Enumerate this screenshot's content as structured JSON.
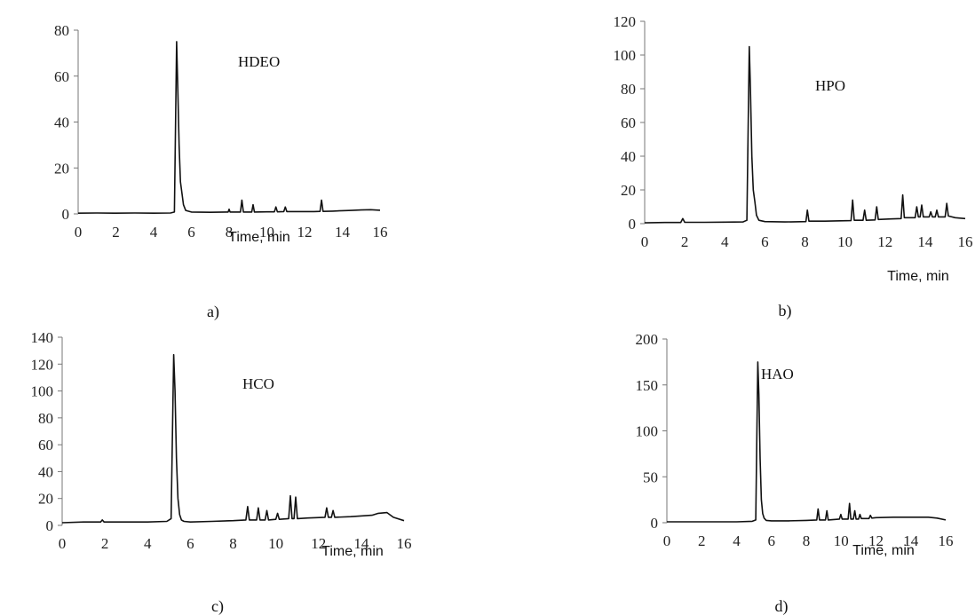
{
  "chart_data": [
    {
      "id": "a",
      "type": "line",
      "title": "HDEO",
      "caption": "a)",
      "xlabel": "Time, min",
      "ylabel": "",
      "xlim": [
        0,
        16
      ],
      "ylim": [
        0,
        80
      ],
      "xticks": [
        0,
        2,
        4,
        6,
        8,
        10,
        12,
        14,
        16
      ],
      "yticks": [
        0,
        20,
        40,
        60,
        80
      ],
      "grid": false,
      "color": "#111111",
      "series": [
        {
          "x": [
            0,
            1,
            2,
            3,
            4,
            4.9,
            5.1,
            5.22,
            5.28,
            5.35,
            5.42,
            5.5,
            5.58,
            5.7,
            6,
            7,
            7.95,
            8.0,
            8.05,
            8.6,
            8.68,
            8.76,
            9.2,
            9.27,
            9.34,
            10,
            10.4,
            10.48,
            10.56,
            10.9,
            10.98,
            11.06,
            11.5,
            12.5,
            12.82,
            12.9,
            12.98,
            13.5,
            14,
            14.5,
            15,
            15.5,
            16
          ],
          "y": [
            0.3,
            0.4,
            0.3,
            0.4,
            0.3,
            0.4,
            0.8,
            75,
            55,
            30,
            14,
            9,
            4,
            1.5,
            0.8,
            0.7,
            0.8,
            2,
            0.8,
            0.8,
            6,
            0.8,
            0.8,
            4,
            0.8,
            0.9,
            0.9,
            3,
            0.9,
            1.0,
            3,
            1.0,
            1.0,
            1.0,
            1.1,
            6,
            1.1,
            1.2,
            1.4,
            1.5,
            1.7,
            1.8,
            1.6
          ]
        }
      ]
    },
    {
      "id": "b",
      "type": "line",
      "title": "HPO",
      "caption": "b)",
      "xlabel": "Time, min",
      "ylabel": "",
      "xlim": [
        0,
        16
      ],
      "ylim": [
        0,
        120
      ],
      "xticks": [
        0,
        2,
        4,
        6,
        8,
        10,
        12,
        14,
        16
      ],
      "yticks": [
        0,
        20,
        40,
        60,
        80,
        100,
        120
      ],
      "grid": false,
      "color": "#111111",
      "series": [
        {
          "x": [
            0,
            1,
            1.8,
            1.9,
            2.0,
            3,
            4,
            4.9,
            5.1,
            5.22,
            5.28,
            5.35,
            5.42,
            5.5,
            5.58,
            5.7,
            6,
            7,
            8.05,
            8.12,
            8.2,
            9,
            10.3,
            10.38,
            10.46,
            10.9,
            10.98,
            11.06,
            11.5,
            11.58,
            11.66,
            12.3,
            12.8,
            12.88,
            12.96,
            13.5,
            13.58,
            13.66,
            13.75,
            13.83,
            13.91,
            14.2,
            14.28,
            14.36,
            14.5,
            14.58,
            14.66,
            15.0,
            15.08,
            15.16,
            15.5,
            16
          ],
          "y": [
            0.5,
            0.7,
            0.7,
            3,
            0.8,
            0.8,
            0.9,
            1.0,
            2,
            105,
            80,
            40,
            20,
            13,
            5,
            2,
            1.2,
            1.0,
            1.2,
            8,
            1.5,
            1.5,
            1.8,
            14,
            2,
            2,
            8,
            2,
            2.2,
            10,
            2.5,
            2.8,
            3,
            17,
            3.5,
            3.5,
            10,
            4,
            4,
            11,
            4,
            4,
            7,
            4,
            4,
            8,
            4,
            4,
            12,
            4.5,
            3.5,
            3
          ]
        }
      ]
    },
    {
      "id": "c",
      "type": "line",
      "title": "HCO",
      "caption": "c)",
      "xlabel": "Time, min",
      "ylabel": "",
      "xlim": [
        0,
        16
      ],
      "ylim": [
        0,
        140
      ],
      "xticks": [
        0,
        2,
        4,
        6,
        8,
        10,
        12,
        14,
        16
      ],
      "yticks": [
        0,
        20,
        40,
        60,
        80,
        100,
        120,
        140
      ],
      "grid": false,
      "color": "#111111",
      "series": [
        {
          "x": [
            0,
            1,
            1.8,
            1.88,
            1.96,
            3,
            4,
            4.9,
            5.1,
            5.22,
            5.28,
            5.35,
            5.42,
            5.5,
            5.58,
            5.7,
            6,
            7,
            8,
            8.6,
            8.68,
            8.76,
            9.1,
            9.18,
            9.26,
            9.5,
            9.58,
            9.66,
            10.0,
            10.08,
            10.16,
            10.6,
            10.68,
            10.76,
            10.85,
            10.93,
            11.01,
            11.5,
            12.3,
            12.38,
            12.46,
            12.6,
            12.68,
            12.76,
            13.5,
            14.5,
            14.8,
            15.2,
            15.5,
            16
          ],
          "y": [
            2,
            2.5,
            2.5,
            4,
            2.5,
            2.5,
            2.5,
            3,
            5,
            127,
            100,
            50,
            20,
            8,
            4,
            3,
            2.5,
            3,
            3.5,
            4,
            14,
            4,
            4,
            13,
            4,
            4,
            11,
            4,
            4.5,
            9,
            4.5,
            5,
            22,
            5,
            5,
            21,
            5,
            5.5,
            6,
            13,
            6,
            6,
            11,
            6,
            6.5,
            7.5,
            9,
            9.5,
            6,
            3.5
          ]
        }
      ]
    },
    {
      "id": "d",
      "type": "line",
      "title": "HAO",
      "caption": "d)",
      "xlabel": "Time, min",
      "ylabel": "",
      "xlim": [
        0,
        16
      ],
      "ylim": [
        0,
        200
      ],
      "xticks": [
        0,
        2,
        4,
        6,
        8,
        10,
        12,
        14,
        16
      ],
      "yticks": [
        0,
        50,
        100,
        150,
        200
      ],
      "grid": false,
      "color": "#111111",
      "series": [
        {
          "x": [
            0,
            1,
            2,
            3,
            4,
            4.9,
            5.1,
            5.22,
            5.28,
            5.35,
            5.42,
            5.5,
            5.58,
            5.7,
            6,
            7,
            8,
            8.6,
            8.68,
            8.76,
            9.1,
            9.18,
            9.26,
            9.9,
            9.98,
            10.06,
            10.4,
            10.48,
            10.56,
            10.7,
            10.78,
            10.86,
            11.0,
            11.08,
            11.16,
            11.6,
            11.68,
            11.76,
            12,
            13,
            14,
            15,
            15.5,
            16
          ],
          "y": [
            1,
            1,
            1,
            1,
            1,
            1.5,
            3,
            175,
            140,
            70,
            25,
            10,
            5,
            2.5,
            2,
            2,
            2.5,
            3,
            15,
            3,
            3,
            13,
            3,
            4,
            9,
            4,
            4,
            21,
            4,
            4,
            13,
            4,
            4,
            9,
            4.5,
            4.5,
            8,
            5,
            5.5,
            6,
            6,
            6,
            5,
            3
          ]
        }
      ]
    }
  ]
}
